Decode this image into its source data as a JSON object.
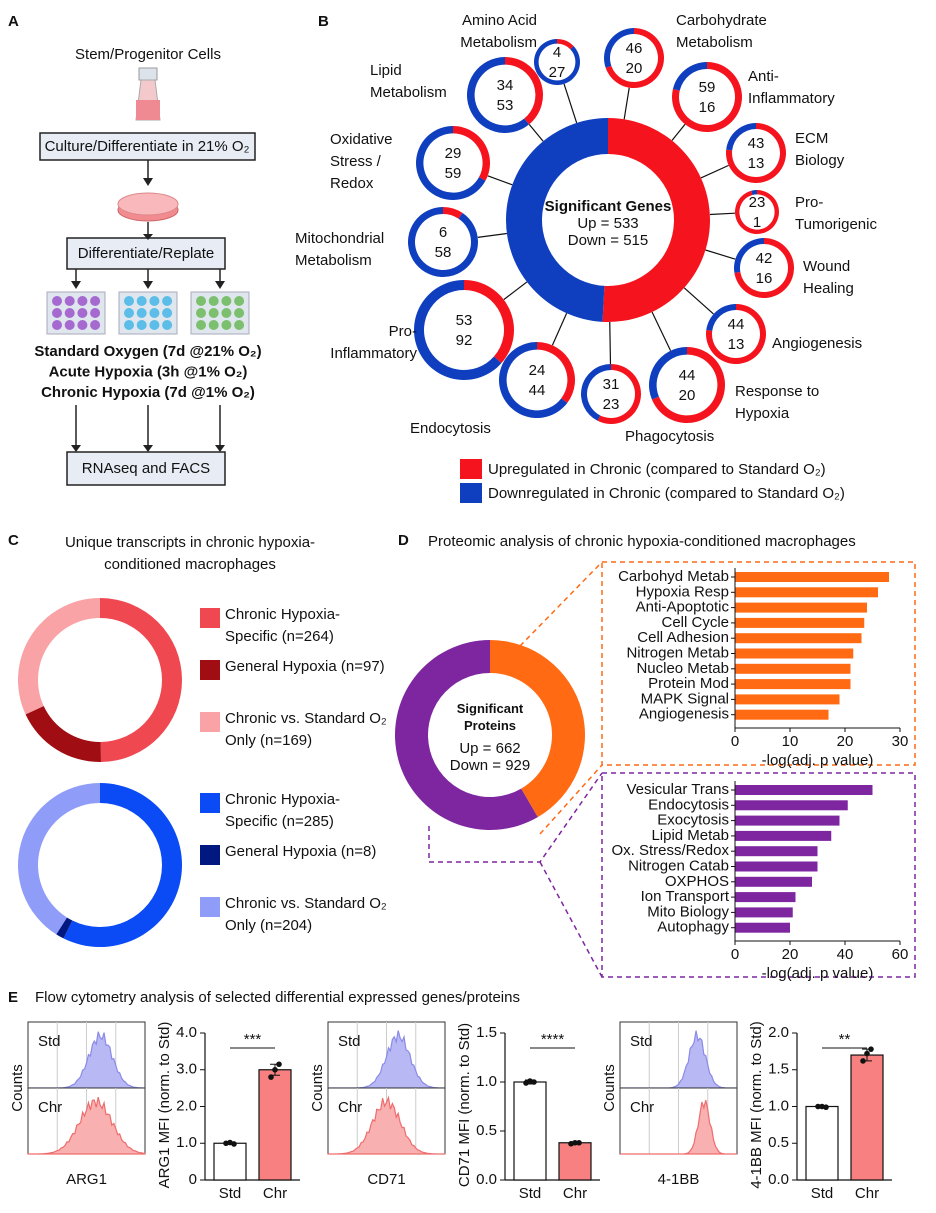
{
  "panel_labels": [
    "A",
    "B",
    "C",
    "D",
    "E"
  ],
  "diagram": {
    "source": "Stem/Progenitor Cells",
    "step1": "Culture/Differentiate in 21% O₂",
    "step2": "Differentiate/Replate",
    "conditions": [
      {
        "label": "Standard Oxygen (7d @21% O₂)",
        "color": "#a569d0"
      },
      {
        "label": "Acute Hypoxia (3h @1% O₂)",
        "color": "#5bbde8"
      },
      {
        "label": "Chronic Hypoxia (7d @1% O₂)",
        "color": "#7cbf6e"
      }
    ],
    "readout": "RNAseq and FACS"
  },
  "chart_data": [
    {
      "type": "network",
      "center": {
        "title": "Significant Genes",
        "values": [
          533,
          515
        ],
        "value_labels": [
          "Up = 533",
          "Down = 515"
        ]
      },
      "categories": [
        "Carbohydrate Metabolism",
        "Anti-Inflammatory",
        "ECM Biology",
        "Pro-Tumorigenic",
        "Wound Healing",
        "Angiogenesis",
        "Response to Hypoxia",
        "Phagocytosis",
        "Endocytosis",
        "Pro-Inflammatory",
        "Mitochondrial Metabolism",
        "Oxidative Stress / Redox",
        "Lipid Metabolism",
        "Amino Acid Metabolism"
      ],
      "series": [
        {
          "name": "Upregulated in Chronic (compared to Standard O₂)",
          "color": "#f5141e",
          "values": [
            46,
            59,
            43,
            23,
            42,
            44,
            44,
            31,
            24,
            53,
            6,
            29,
            34,
            4
          ]
        },
        {
          "name": "Downregulated in Chronic (compared to Standard O₂)",
          "color": "#0f3fbf",
          "values": [
            20,
            16,
            13,
            1,
            16,
            13,
            20,
            23,
            44,
            92,
            58,
            59,
            53,
            27
          ]
        }
      ]
    },
    {
      "type": "donut",
      "title": "Unique transcripts in chronic hypoxia-conditioned macrophages",
      "categories": [
        "Chronic Hypoxia-Specific (n=264)",
        "General Hypoxia (n=97)",
        "Chronic vs. Standard O₂ Only (n=169)"
      ],
      "values": [
        264,
        97,
        169
      ],
      "colors": [
        "#f04850",
        "#a00d12",
        "#f9a3a6"
      ]
    },
    {
      "type": "donut",
      "categories": [
        "Chronic Hypoxia-Specific (n=285)",
        "General Hypoxia (n=8)",
        "Chronic vs. Standard O₂ Only (n=204)"
      ],
      "values": [
        285,
        8,
        204
      ],
      "colors": [
        "#0a4bf5",
        "#001880",
        "#8f9df9"
      ]
    },
    {
      "type": "donut",
      "title": "Proteomic analysis of chronic hypoxia-conditioned macrophages",
      "center_title": "Significant Proteins",
      "values": [
        662,
        929
      ],
      "value_labels": [
        "Up = 662",
        "Down = 929"
      ],
      "colors": [
        "#ff6a13",
        "#7d26a0"
      ]
    },
    {
      "type": "barh",
      "categories": [
        "Carbohyd Metab",
        "Hypoxia Resp",
        "Anti-Apoptotic",
        "Cell Cycle",
        "Cell Adhesion",
        "Nitrogen Metab",
        "Nucleo Metab",
        "Protein Mod",
        "MAPK Signal",
        "Angiogenesis"
      ],
      "values": [
        28,
        26,
        24,
        23.5,
        23,
        21.5,
        21,
        21,
        19,
        17
      ],
      "color": "#ff6a13",
      "xlabel": "-log(adj. p value)",
      "xlim": [
        0,
        30
      ],
      "xticks": [
        0,
        10,
        20,
        30
      ]
    },
    {
      "type": "barh",
      "categories": [
        "Vesicular Trans",
        "Endocytosis",
        "Exocytosis",
        "Lipid Metab",
        "Ox. Stress/Redox",
        "Nitrogen Catab",
        "OXPHOS",
        "Ion Transport",
        "Mito Biology",
        "Autophagy"
      ],
      "values": [
        50,
        41,
        38,
        35,
        30,
        30,
        28,
        22,
        21,
        20
      ],
      "color": "#7d26a0",
      "xlabel": "-log(adj. p value)",
      "xlim": [
        0,
        60
      ],
      "xticks": [
        0,
        20,
        40,
        60
      ]
    },
    {
      "type": "flow",
      "title": "Flow cytometry analysis of selected differential expressed genes/proteins",
      "marker": "ARG1",
      "histogram_ylabel": "Counts",
      "categories": [
        "Std",
        "Chr"
      ],
      "values": [
        1.0,
        3.0
      ],
      "errors": [
        0.03,
        0.15
      ],
      "points": [
        [
          1.0,
          1.02,
          0.98
        ],
        [
          2.8,
          3.0,
          3.15
        ]
      ],
      "colors": [
        "#ffffff",
        "#f88080"
      ],
      "ylabel": "ARG1 MFI (norm. to Std)",
      "significance": "***",
      "ylim": [
        0,
        4
      ],
      "yticks": [
        0,
        {
          "value": 1,
          "label": "1.0"
        },
        {
          "value": 2,
          "label": "2.0"
        },
        {
          "value": 3,
          "label": "3.0"
        },
        {
          "value": 4,
          "label": "4.0"
        }
      ]
    },
    {
      "type": "flow",
      "marker": "CD71",
      "histogram_ylabel": "Counts",
      "categories": [
        "Std",
        "Chr"
      ],
      "values": [
        1.0,
        0.38
      ],
      "errors": [
        0.02,
        0.01
      ],
      "points": [
        [
          0.99,
          1.01,
          1.0
        ],
        [
          0.37,
          0.38,
          0.38
        ]
      ],
      "colors": [
        "#ffffff",
        "#f88080"
      ],
      "ylabel": "CD71 MFI (norm. to Std)",
      "significance": "****",
      "ylim": [
        0,
        1.5
      ],
      "yticks": [
        {
          "value": 0,
          "label": "0.0"
        },
        0.5,
        {
          "value": 1,
          "label": "1.0"
        },
        1.5
      ]
    },
    {
      "type": "flow",
      "marker": "4-1BB",
      "histogram_ylabel": "Counts",
      "categories": [
        "Std",
        "Chr"
      ],
      "values": [
        1.0,
        1.7
      ],
      "errors": [
        0.01,
        0.08
      ],
      "points": [
        [
          1.0,
          1.0,
          0.99
        ],
        [
          1.62,
          1.72,
          1.78
        ]
      ],
      "colors": [
        "#ffffff",
        "#f88080"
      ],
      "ylabel": "4-1BB MFI (norm. to Std)",
      "significance": "**",
      "ylim": [
        0,
        2
      ],
      "yticks": [
        {
          "value": 0,
          "label": "0.0"
        },
        0.5,
        {
          "value": 1,
          "label": "1.0"
        },
        1.5,
        {
          "value": 2,
          "label": "2.0"
        }
      ]
    }
  ]
}
